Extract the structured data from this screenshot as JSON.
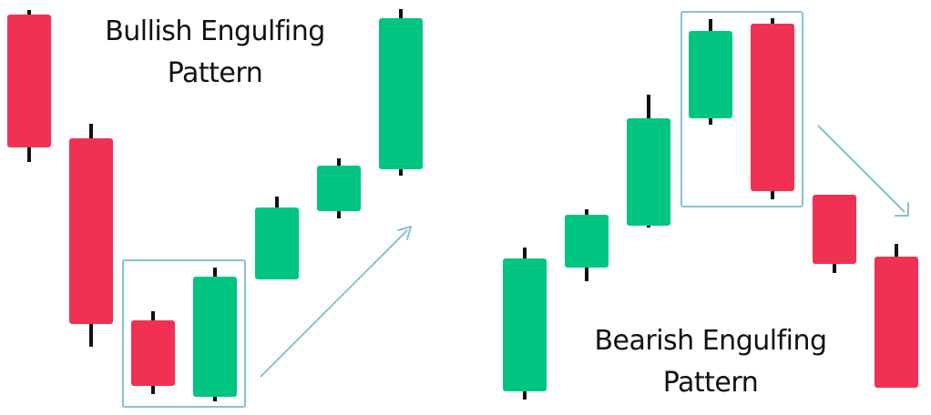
{
  "colors": {
    "bull": "#00C484",
    "bear": "#F13154",
    "wick": "#111111",
    "highlight": "#86C3D0",
    "arrow": "#86C3D0"
  },
  "bullish": {
    "title_line1": "Bullish Engulfing",
    "title_line2": "Pattern"
  },
  "bearish": {
    "title_line1": "Bearish Engulfing",
    "title_line2": "Pattern"
  }
}
